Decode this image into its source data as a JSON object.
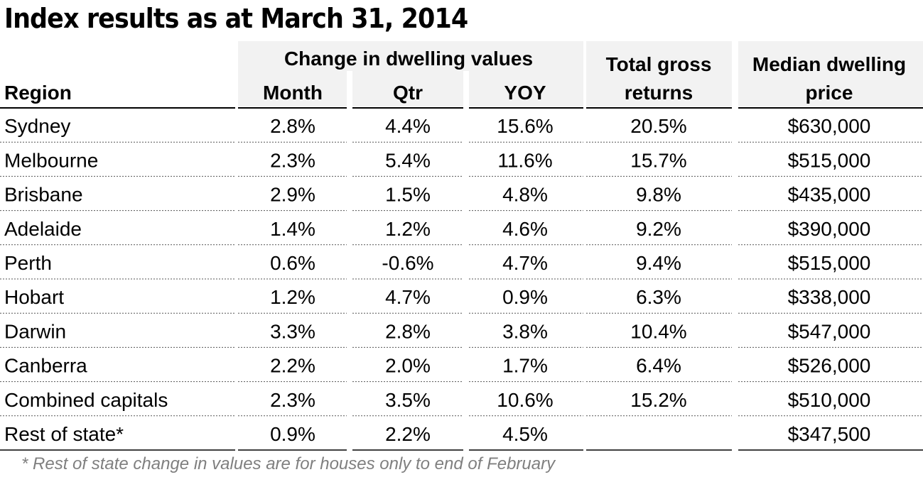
{
  "chart_data": {
    "type": "table",
    "title": "Index results as at March 31, 2014",
    "group_header": "Change in dwelling values",
    "columns": [
      "Region",
      "Month",
      "Qtr",
      "YOY",
      "Total gross returns",
      "Median dwelling price"
    ],
    "header_lines": {
      "region": "Region",
      "month": "Month",
      "qtr": "Qtr",
      "yoy": "YOY",
      "total_1": "Total gross",
      "total_2": "returns",
      "median_1": "Median dwelling",
      "median_2": "price"
    },
    "rows": [
      [
        "Sydney",
        "2.8%",
        "4.4%",
        "15.6%",
        "20.5%",
        "$630,000"
      ],
      [
        "Melbourne",
        "2.3%",
        "5.4%",
        "11.6%",
        "15.7%",
        "$515,000"
      ],
      [
        "Brisbane",
        "2.9%",
        "1.5%",
        "4.8%",
        "9.8%",
        "$435,000"
      ],
      [
        "Adelaide",
        "1.4%",
        "1.2%",
        "4.6%",
        "9.2%",
        "$390,000"
      ],
      [
        "Perth",
        "0.6%",
        "-0.6%",
        "4.7%",
        "9.4%",
        "$515,000"
      ],
      [
        "Hobart",
        "1.2%",
        "4.7%",
        "0.9%",
        "6.3%",
        "$338,000"
      ],
      [
        "Darwin",
        "3.3%",
        "2.8%",
        "3.8%",
        "10.4%",
        "$547,000"
      ],
      [
        "Canberra",
        "2.2%",
        "2.0%",
        "1.7%",
        "6.4%",
        "$526,000"
      ],
      [
        "Combined capitals",
        "2.3%",
        "3.5%",
        "10.6%",
        "15.2%",
        "$510,000"
      ],
      [
        "Rest of state*",
        "0.9%",
        "2.2%",
        "4.5%",
        "",
        "$347,500"
      ]
    ],
    "footnote": "* Rest of state change in values are for houses only to end of February"
  },
  "colors": {
    "header_fill": "#f2f2f2",
    "rule": "#000000",
    "row_divider": "#555555",
    "footnote": "#7f7f7f"
  }
}
